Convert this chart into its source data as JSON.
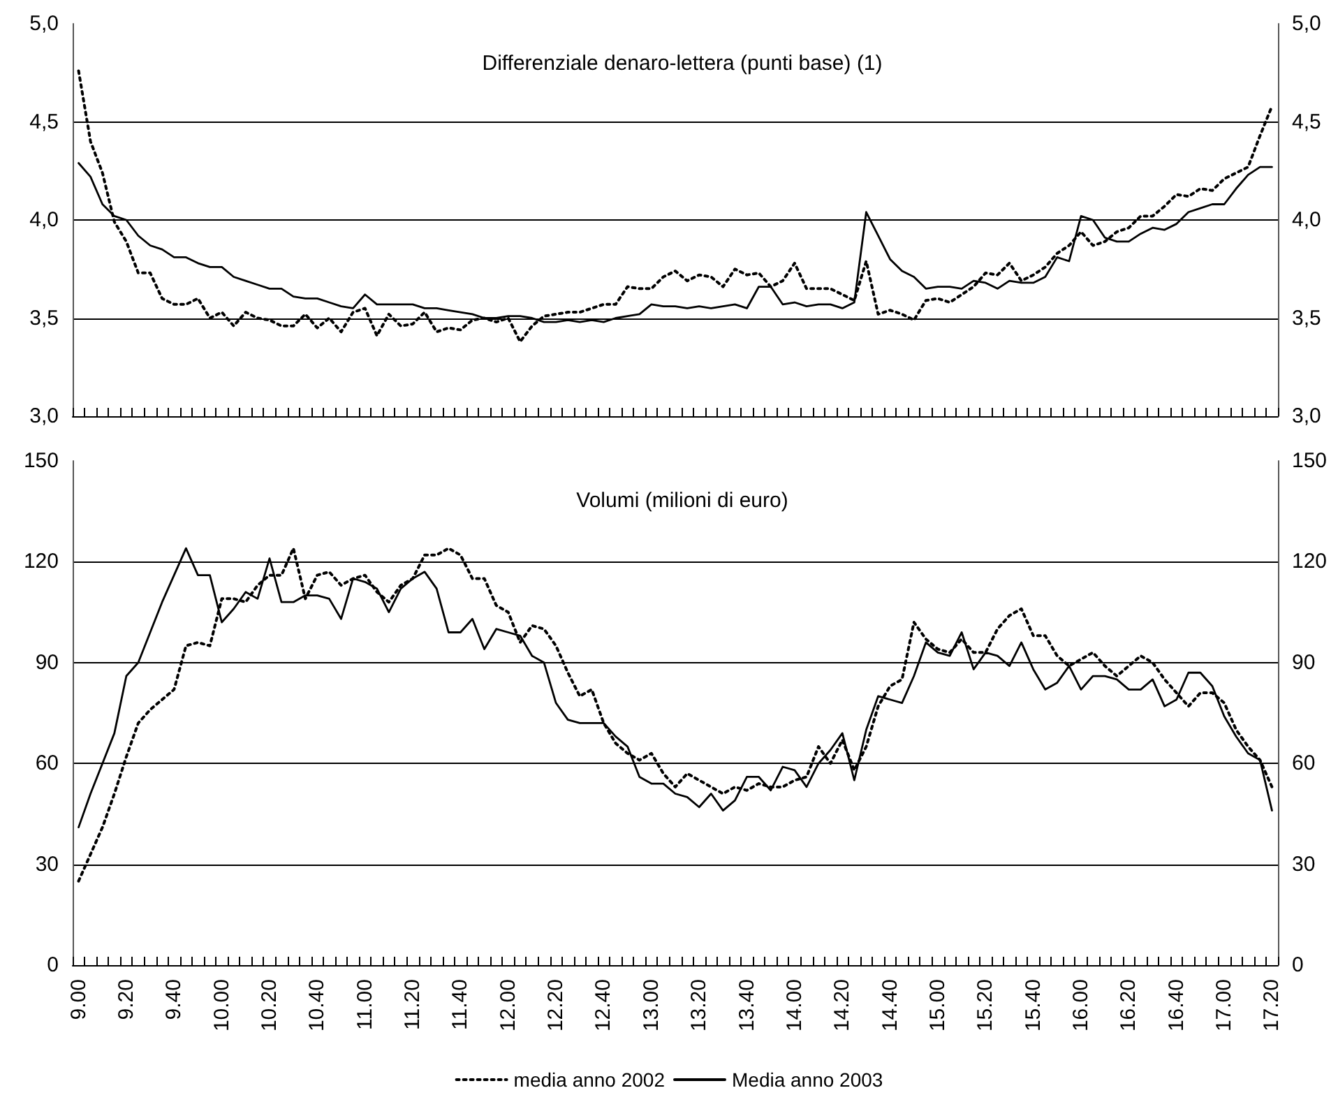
{
  "chart_data": [
    {
      "type": "line",
      "title": "Differenziale denaro-lettera (punti base) (1)",
      "categories": [
        "9.00",
        null,
        null,
        null,
        "9.20",
        null,
        null,
        null,
        "9.40",
        null,
        null,
        null,
        "10.00",
        null,
        null,
        null,
        "10.20",
        null,
        null,
        null,
        "10.40",
        null,
        null,
        null,
        "11.00",
        null,
        null,
        null,
        "11.20",
        null,
        null,
        null,
        "11.40",
        null,
        null,
        null,
        "12.00",
        null,
        null,
        null,
        "12.20",
        null,
        null,
        null,
        "12.40",
        null,
        null,
        null,
        "13.00",
        null,
        null,
        null,
        "13.20",
        null,
        null,
        null,
        "13.40",
        null,
        null,
        null,
        "14.00",
        null,
        null,
        null,
        "14.20",
        null,
        null,
        null,
        "14.40",
        null,
        null,
        null,
        "15.00",
        null,
        null,
        null,
        "15.20",
        null,
        null,
        null,
        "15.40",
        null,
        null,
        null,
        "16.00",
        null,
        null,
        null,
        "16.20",
        null,
        null,
        null,
        "16.40",
        null,
        null,
        null,
        "17.00",
        null,
        null,
        null,
        "17.20"
      ],
      "series": [
        {
          "color": "#000000",
          "line_style": "dotted",
          "values": [
            4.76,
            4.4,
            4.24,
            3.99,
            3.89,
            3.73,
            3.73,
            3.6,
            3.57,
            3.57,
            3.6,
            3.5,
            3.53,
            3.46,
            3.53,
            3.5,
            3.49,
            3.46,
            3.46,
            3.52,
            3.45,
            3.5,
            3.43,
            3.53,
            3.55,
            3.41,
            3.52,
            3.46,
            3.47,
            3.53,
            3.43,
            3.45,
            3.44,
            3.49,
            3.5,
            3.48,
            3.5,
            3.38,
            3.46,
            3.51,
            3.52,
            3.53,
            3.53,
            3.55,
            3.57,
            3.57,
            3.66,
            3.65,
            3.65,
            3.71,
            3.74,
            3.69,
            3.72,
            3.71,
            3.66,
            3.75,
            3.72,
            3.73,
            3.66,
            3.69,
            3.78,
            3.65,
            3.65,
            3.65,
            3.62,
            3.59,
            3.79,
            3.52,
            3.54,
            3.52,
            3.49,
            3.59,
            3.6,
            3.58,
            3.62,
            3.66,
            3.73,
            3.72,
            3.78,
            3.69,
            3.72,
            3.76,
            3.83,
            3.87,
            3.94,
            3.87,
            3.89,
            3.94,
            3.96,
            4.02,
            4.02,
            4.07,
            4.13,
            4.12,
            4.16,
            4.15,
            4.21,
            4.24,
            4.27,
            4.43,
            4.58
          ]
        },
        {
          "color": "#000000",
          "line_style": "solid",
          "values": [
            4.29,
            4.22,
            4.08,
            4.02,
            4.0,
            3.92,
            3.87,
            3.85,
            3.81,
            3.81,
            3.78,
            3.76,
            3.76,
            3.71,
            3.69,
            3.67,
            3.65,
            3.65,
            3.61,
            3.6,
            3.6,
            3.58,
            3.56,
            3.55,
            3.62,
            3.57,
            3.57,
            3.57,
            3.57,
            3.55,
            3.55,
            3.54,
            3.53,
            3.52,
            3.5,
            3.5,
            3.51,
            3.51,
            3.5,
            3.48,
            3.48,
            3.49,
            3.48,
            3.49,
            3.48,
            3.5,
            3.51,
            3.52,
            3.57,
            3.56,
            3.56,
            3.55,
            3.56,
            3.55,
            3.56,
            3.57,
            3.55,
            3.66,
            3.66,
            3.57,
            3.58,
            3.56,
            3.57,
            3.57,
            3.55,
            3.58,
            4.04,
            3.92,
            3.8,
            3.74,
            3.71,
            3.65,
            3.66,
            3.66,
            3.65,
            3.69,
            3.68,
            3.65,
            3.69,
            3.68,
            3.68,
            3.71,
            3.81,
            3.79,
            4.02,
            4.0,
            3.91,
            3.89,
            3.89,
            3.93,
            3.96,
            3.95,
            3.98,
            4.04,
            4.06,
            4.08,
            4.08,
            4.16,
            4.23,
            4.27,
            4.27
          ]
        }
      ],
      "ylim": [
        3,
        5
      ],
      "yticks": [
        {
          "value": 3,
          "label": "3,0"
        },
        {
          "value": 3.5,
          "label": "3,5"
        },
        {
          "value": 4,
          "label": "4,0"
        },
        {
          "value": 4.5,
          "label": "4,5"
        },
        {
          "value": 5,
          "label": "5,0"
        }
      ],
      "y2lim": [
        3,
        5
      ],
      "y2ticks": [
        {
          "value": 3,
          "label": "3,0"
        },
        {
          "value": 3.5,
          "label": "3,5"
        },
        {
          "value": 4,
          "label": "4,0"
        },
        {
          "value": 4.5,
          "label": "4,5"
        },
        {
          "value": 5,
          "label": "5,0"
        }
      ],
      "grid": "y",
      "marker": "none",
      "tick_labels": "y"
    },
    {
      "type": "line",
      "title": "Volumi (milioni di euro)",
      "categories": [
        "9.00",
        null,
        null,
        null,
        "9.20",
        null,
        null,
        null,
        "9.40",
        null,
        null,
        null,
        "10.00",
        null,
        null,
        null,
        "10.20",
        null,
        null,
        null,
        "10.40",
        null,
        null,
        null,
        "11.00",
        null,
        null,
        null,
        "11.20",
        null,
        null,
        null,
        "11.40",
        null,
        null,
        null,
        "12.00",
        null,
        null,
        null,
        "12.20",
        null,
        null,
        null,
        "12.40",
        null,
        null,
        null,
        "13.00",
        null,
        null,
        null,
        "13.20",
        null,
        null,
        null,
        "13.40",
        null,
        null,
        null,
        "14.00",
        null,
        null,
        null,
        "14.20",
        null,
        null,
        null,
        "14.40",
        null,
        null,
        null,
        "15.00",
        null,
        null,
        null,
        "15.20",
        null,
        null,
        null,
        "15.40",
        null,
        null,
        null,
        "16.00",
        null,
        null,
        null,
        "16.20",
        null,
        null,
        null,
        "16.40",
        null,
        null,
        null,
        "17.00",
        null,
        null,
        null,
        "17.20"
      ],
      "series": [
        {
          "name": "media anno 2002",
          "color": "#000000",
          "line_style": "dotted",
          "values": [
            25,
            33,
            41,
            51,
            62,
            72,
            76,
            79,
            82,
            95,
            96,
            95,
            109,
            109,
            108,
            113,
            116,
            116,
            124,
            109,
            116,
            117,
            113,
            115,
            116,
            111,
            108,
            113,
            115,
            122,
            122,
            124,
            122,
            115,
            115,
            107,
            105,
            96,
            101,
            100,
            95,
            87,
            80,
            82,
            72,
            66,
            63,
            61,
            63,
            57,
            53,
            57,
            55,
            53,
            51,
            53,
            52,
            54,
            53,
            53,
            55,
            56,
            65,
            60,
            67,
            58,
            65,
            77,
            83,
            85,
            102,
            97,
            94,
            93,
            97,
            93,
            93,
            100,
            104,
            106,
            98,
            98,
            92,
            89,
            91,
            93,
            89,
            86,
            89,
            92,
            90,
            85,
            81,
            77,
            81,
            81,
            78,
            70,
            65,
            61,
            53
          ]
        },
        {
          "name": "Media anno 2003",
          "color": "#000000",
          "line_style": "solid",
          "values": [
            41,
            51,
            60,
            69,
            86,
            90,
            99,
            108,
            116,
            124,
            116,
            116,
            102,
            106,
            111,
            109,
            121,
            108,
            108,
            110,
            110,
            109,
            103,
            115,
            114,
            112,
            105,
            112,
            115,
            117,
            112,
            99,
            99,
            103,
            94,
            100,
            99,
            98,
            92,
            90,
            78,
            73,
            72,
            72,
            72,
            68,
            65,
            56,
            54,
            54,
            51,
            50,
            47,
            51,
            46,
            49,
            56,
            56,
            52,
            59,
            58,
            53,
            60,
            64,
            69,
            55,
            70,
            80,
            79,
            78,
            86,
            96,
            93,
            92,
            99,
            88,
            93,
            92,
            89,
            96,
            88,
            82,
            84,
            89,
            82,
            86,
            86,
            85,
            82,
            82,
            85,
            77,
            79,
            87,
            87,
            83,
            74,
            68,
            63,
            61,
            46
          ]
        }
      ],
      "ylim": [
        0,
        150
      ],
      "yticks": [
        0,
        30,
        60,
        90,
        120,
        150
      ],
      "y2lim": [
        0,
        150
      ],
      "y2ticks": [
        0,
        30,
        60,
        90,
        120,
        150
      ],
      "grid": "y",
      "marker": "none",
      "legend": "bottom"
    }
  ]
}
